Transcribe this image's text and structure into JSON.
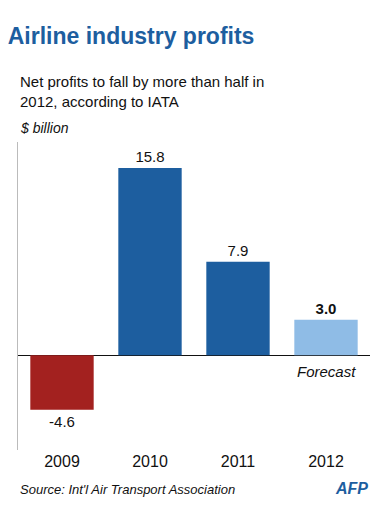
{
  "chart_data": {
    "type": "bar",
    "title": "Airline industry profits",
    "subtitle": "Net profits to fall by more than half in 2012, according to IATA",
    "y_label": "$ billion",
    "categories": [
      "2009",
      "2010",
      "2011",
      "2012"
    ],
    "values": [
      -4.6,
      15.8,
      7.9,
      3.0
    ],
    "value_labels": [
      "-4.6",
      "15.8",
      "7.9",
      "3.0"
    ],
    "colors": [
      "#a3211f",
      "#1d5e9f",
      "#1d5e9f",
      "#8fbce6"
    ],
    "data_labels": true,
    "ylim": [
      -8,
      18
    ],
    "tick_labels": "x",
    "grid": false,
    "annotations": [
      {
        "text": "Forecast",
        "category": "2012"
      }
    ],
    "source": "Source: Int'l Air Transport Association",
    "credit": "AFP"
  }
}
